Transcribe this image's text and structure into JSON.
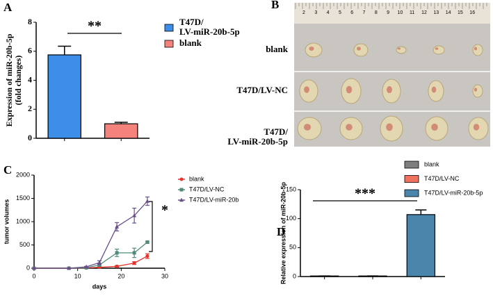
{
  "chart_data": [
    {
      "type": "bar",
      "panel": "A",
      "ylabel": [
        "Expression of miR-20b-5p",
        "(fold changes)"
      ],
      "categories": [
        null,
        null
      ],
      "series": [
        {
          "name": "T47D/\nLV-miR-20b-5p",
          "color": "#3d8ee8",
          "values": [
            5.75,
            null
          ],
          "errors": [
            0.6,
            null
          ]
        },
        {
          "name": "blank",
          "color": "#f4837d",
          "values": [
            null,
            1.0
          ],
          "errors": [
            null,
            0.1
          ]
        }
      ],
      "ylim": [
        0,
        8
      ],
      "yticks": [
        0,
        2,
        4,
        6,
        8
      ],
      "annotation": "**"
    },
    {
      "type": "image",
      "panel": "B",
      "ruler_labels": [
        "2",
        "3",
        "4",
        "5",
        "6",
        "7",
        "8",
        "9",
        "10",
        "11",
        "12",
        "13",
        "14",
        "15",
        "16"
      ],
      "row_labels": [
        "blank",
        "T47D/LV-NC",
        "T47D/\nLV-miR-20b-5p"
      ]
    },
    {
      "type": "line",
      "panel": "C",
      "xlabel": "days",
      "ylabel": "tumor volumes",
      "x": [
        0,
        8,
        12,
        15,
        19,
        23,
        26
      ],
      "series": [
        {
          "name": "blank",
          "color": "#e8322d",
          "marker": "circle",
          "values": [
            0,
            0,
            5,
            20,
            40,
            110,
            260
          ],
          "errors": [
            0,
            0,
            5,
            10,
            15,
            30,
            50
          ]
        },
        {
          "name": "T47D/LV-NC",
          "color": "#4f8a7a",
          "marker": "square",
          "values": [
            0,
            0,
            10,
            70,
            330,
            330,
            560
          ],
          "errors": [
            0,
            0,
            10,
            30,
            80,
            100,
            20
          ]
        },
        {
          "name": "T47D/LV-miR-20b",
          "color": "#6a4e8a",
          "marker": "triangle",
          "values": [
            0,
            0,
            30,
            120,
            890,
            1130,
            1440
          ],
          "errors": [
            0,
            0,
            10,
            40,
            90,
            160,
            90
          ]
        }
      ],
      "xlim": [
        0,
        30
      ],
      "xticks": [
        0,
        10,
        20,
        30
      ],
      "ylim": [
        0,
        2000
      ],
      "yticks": [
        0,
        500,
        1000,
        1500,
        2000
      ],
      "annotation": "*"
    },
    {
      "type": "bar",
      "panel": "D",
      "ylabel": [
        "Relative expression of miR-20b-5p"
      ],
      "categories": [
        null,
        null,
        null
      ],
      "series": [
        {
          "name": "blank",
          "color": "#7f7f7f",
          "values": [
            1,
            null,
            null
          ],
          "errors": [
            0,
            null,
            null
          ]
        },
        {
          "name": "T47D/LV-NC",
          "color": "#f0735f",
          "values": [
            null,
            1,
            null
          ],
          "errors": [
            null,
            0,
            null
          ]
        },
        {
          "name": "T47D/LV-miR-20b-5p",
          "color": "#4a85ac",
          "values": [
            null,
            null,
            107
          ],
          "errors": [
            null,
            null,
            8
          ]
        }
      ],
      "ylim": [
        0,
        150
      ],
      "yticks": [
        0,
        50,
        100,
        150
      ],
      "annotation": "***"
    }
  ]
}
